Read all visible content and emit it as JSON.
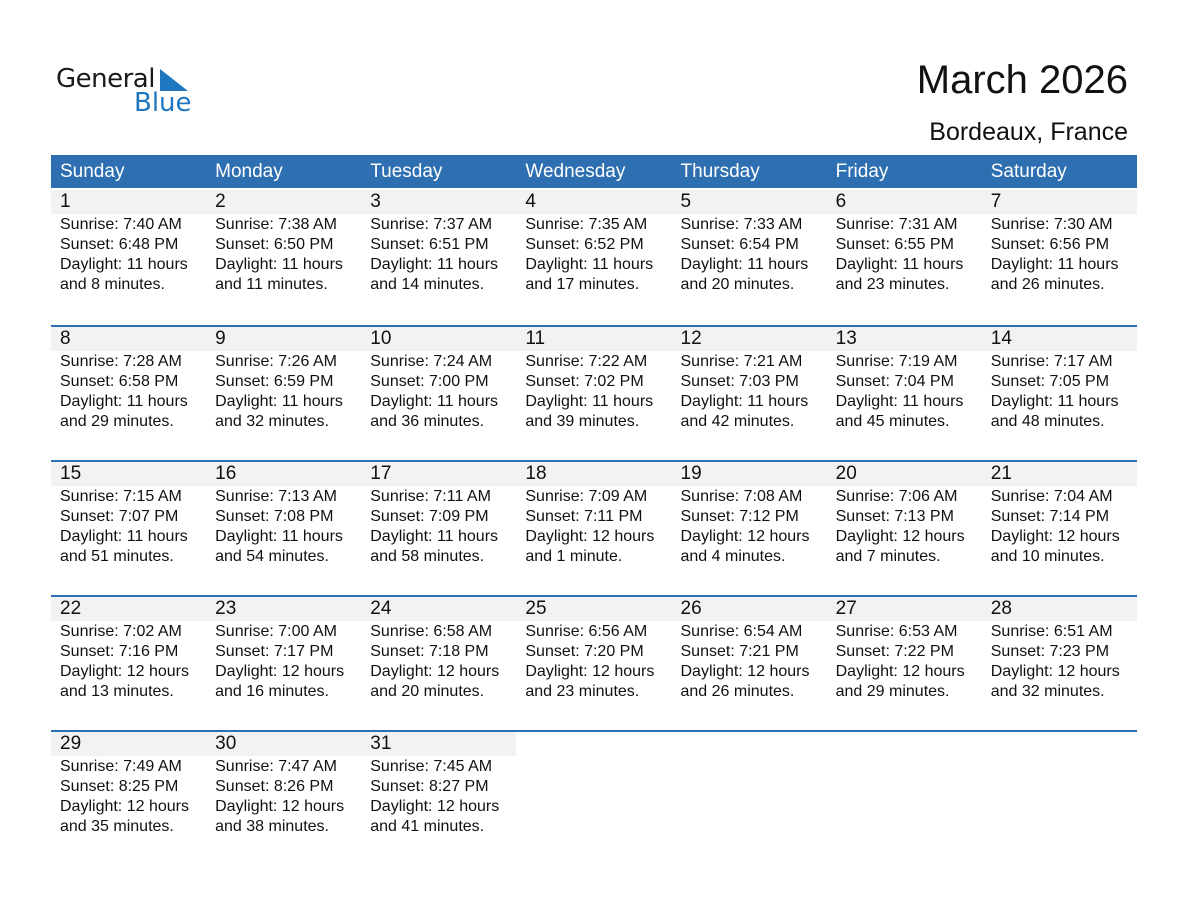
{
  "logo": {
    "text_general": "General",
    "text_blue": "Blue",
    "brand_color": "#1f77c0"
  },
  "title": "March 2026",
  "location": "Bordeaux, France",
  "header_color": "#2e6fb1",
  "weekdays": [
    "Sunday",
    "Monday",
    "Tuesday",
    "Wednesday",
    "Thursday",
    "Friday",
    "Saturday"
  ],
  "weeks": [
    [
      {
        "day": "1",
        "sunrise": "Sunrise: 7:40 AM",
        "sunset": "Sunset: 6:48 PM",
        "daylight1": "Daylight: 11 hours",
        "daylight2": "and 8 minutes."
      },
      {
        "day": "2",
        "sunrise": "Sunrise: 7:38 AM",
        "sunset": "Sunset: 6:50 PM",
        "daylight1": "Daylight: 11 hours",
        "daylight2": "and 11 minutes."
      },
      {
        "day": "3",
        "sunrise": "Sunrise: 7:37 AM",
        "sunset": "Sunset: 6:51 PM",
        "daylight1": "Daylight: 11 hours",
        "daylight2": "and 14 minutes."
      },
      {
        "day": "4",
        "sunrise": "Sunrise: 7:35 AM",
        "sunset": "Sunset: 6:52 PM",
        "daylight1": "Daylight: 11 hours",
        "daylight2": "and 17 minutes."
      },
      {
        "day": "5",
        "sunrise": "Sunrise: 7:33 AM",
        "sunset": "Sunset: 6:54 PM",
        "daylight1": "Daylight: 11 hours",
        "daylight2": "and 20 minutes."
      },
      {
        "day": "6",
        "sunrise": "Sunrise: 7:31 AM",
        "sunset": "Sunset: 6:55 PM",
        "daylight1": "Daylight: 11 hours",
        "daylight2": "and 23 minutes."
      },
      {
        "day": "7",
        "sunrise": "Sunrise: 7:30 AM",
        "sunset": "Sunset: 6:56 PM",
        "daylight1": "Daylight: 11 hours",
        "daylight2": "and 26 minutes."
      }
    ],
    [
      {
        "day": "8",
        "sunrise": "Sunrise: 7:28 AM",
        "sunset": "Sunset: 6:58 PM",
        "daylight1": "Daylight: 11 hours",
        "daylight2": "and 29 minutes."
      },
      {
        "day": "9",
        "sunrise": "Sunrise: 7:26 AM",
        "sunset": "Sunset: 6:59 PM",
        "daylight1": "Daylight: 11 hours",
        "daylight2": "and 32 minutes."
      },
      {
        "day": "10",
        "sunrise": "Sunrise: 7:24 AM",
        "sunset": "Sunset: 7:00 PM",
        "daylight1": "Daylight: 11 hours",
        "daylight2": "and 36 minutes."
      },
      {
        "day": "11",
        "sunrise": "Sunrise: 7:22 AM",
        "sunset": "Sunset: 7:02 PM",
        "daylight1": "Daylight: 11 hours",
        "daylight2": "and 39 minutes."
      },
      {
        "day": "12",
        "sunrise": "Sunrise: 7:21 AM",
        "sunset": "Sunset: 7:03 PM",
        "daylight1": "Daylight: 11 hours",
        "daylight2": "and 42 minutes."
      },
      {
        "day": "13",
        "sunrise": "Sunrise: 7:19 AM",
        "sunset": "Sunset: 7:04 PM",
        "daylight1": "Daylight: 11 hours",
        "daylight2": "and 45 minutes."
      },
      {
        "day": "14",
        "sunrise": "Sunrise: 7:17 AM",
        "sunset": "Sunset: 7:05 PM",
        "daylight1": "Daylight: 11 hours",
        "daylight2": "and 48 minutes."
      }
    ],
    [
      {
        "day": "15",
        "sunrise": "Sunrise: 7:15 AM",
        "sunset": "Sunset: 7:07 PM",
        "daylight1": "Daylight: 11 hours",
        "daylight2": "and 51 minutes."
      },
      {
        "day": "16",
        "sunrise": "Sunrise: 7:13 AM",
        "sunset": "Sunset: 7:08 PM",
        "daylight1": "Daylight: 11 hours",
        "daylight2": "and 54 minutes."
      },
      {
        "day": "17",
        "sunrise": "Sunrise: 7:11 AM",
        "sunset": "Sunset: 7:09 PM",
        "daylight1": "Daylight: 11 hours",
        "daylight2": "and 58 minutes."
      },
      {
        "day": "18",
        "sunrise": "Sunrise: 7:09 AM",
        "sunset": "Sunset: 7:11 PM",
        "daylight1": "Daylight: 12 hours",
        "daylight2": "and 1 minute."
      },
      {
        "day": "19",
        "sunrise": "Sunrise: 7:08 AM",
        "sunset": "Sunset: 7:12 PM",
        "daylight1": "Daylight: 12 hours",
        "daylight2": "and 4 minutes."
      },
      {
        "day": "20",
        "sunrise": "Sunrise: 7:06 AM",
        "sunset": "Sunset: 7:13 PM",
        "daylight1": "Daylight: 12 hours",
        "daylight2": "and 7 minutes."
      },
      {
        "day": "21",
        "sunrise": "Sunrise: 7:04 AM",
        "sunset": "Sunset: 7:14 PM",
        "daylight1": "Daylight: 12 hours",
        "daylight2": "and 10 minutes."
      }
    ],
    [
      {
        "day": "22",
        "sunrise": "Sunrise: 7:02 AM",
        "sunset": "Sunset: 7:16 PM",
        "daylight1": "Daylight: 12 hours",
        "daylight2": "and 13 minutes."
      },
      {
        "day": "23",
        "sunrise": "Sunrise: 7:00 AM",
        "sunset": "Sunset: 7:17 PM",
        "daylight1": "Daylight: 12 hours",
        "daylight2": "and 16 minutes."
      },
      {
        "day": "24",
        "sunrise": "Sunrise: 6:58 AM",
        "sunset": "Sunset: 7:18 PM",
        "daylight1": "Daylight: 12 hours",
        "daylight2": "and 20 minutes."
      },
      {
        "day": "25",
        "sunrise": "Sunrise: 6:56 AM",
        "sunset": "Sunset: 7:20 PM",
        "daylight1": "Daylight: 12 hours",
        "daylight2": "and 23 minutes."
      },
      {
        "day": "26",
        "sunrise": "Sunrise: 6:54 AM",
        "sunset": "Sunset: 7:21 PM",
        "daylight1": "Daylight: 12 hours",
        "daylight2": "and 26 minutes."
      },
      {
        "day": "27",
        "sunrise": "Sunrise: 6:53 AM",
        "sunset": "Sunset: 7:22 PM",
        "daylight1": "Daylight: 12 hours",
        "daylight2": "and 29 minutes."
      },
      {
        "day": "28",
        "sunrise": "Sunrise: 6:51 AM",
        "sunset": "Sunset: 7:23 PM",
        "daylight1": "Daylight: 12 hours",
        "daylight2": "and 32 minutes."
      }
    ],
    [
      {
        "day": "29",
        "sunrise": "Sunrise: 7:49 AM",
        "sunset": "Sunset: 8:25 PM",
        "daylight1": "Daylight: 12 hours",
        "daylight2": "and 35 minutes."
      },
      {
        "day": "30",
        "sunrise": "Sunrise: 7:47 AM",
        "sunset": "Sunset: 8:26 PM",
        "daylight1": "Daylight: 12 hours",
        "daylight2": "and 38 minutes."
      },
      {
        "day": "31",
        "sunrise": "Sunrise: 7:45 AM",
        "sunset": "Sunset: 8:27 PM",
        "daylight1": "Daylight: 12 hours",
        "daylight2": "and 41 minutes."
      },
      null,
      null,
      null,
      null
    ]
  ]
}
